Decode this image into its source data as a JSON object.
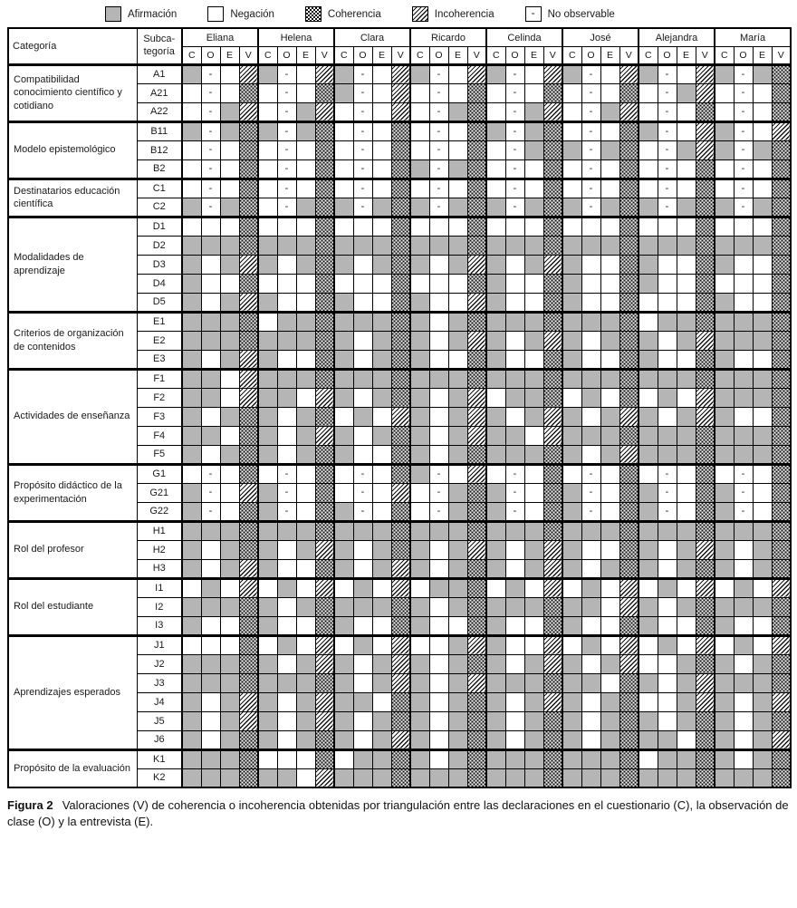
{
  "legend": {
    "items": [
      {
        "code": "A",
        "label": "Afirmación"
      },
      {
        "code": "N",
        "label": "Negación"
      },
      {
        "code": "C",
        "label": "Coherencia"
      },
      {
        "code": "I",
        "label": "Incoherencia"
      },
      {
        "code": "D",
        "label": "No observable",
        "swatch_glyph": "-"
      }
    ]
  },
  "table": {
    "category_header": "Categoría",
    "subcategory_header_lines": [
      "Subca-",
      "tegoría"
    ],
    "teachers": [
      "Eliana",
      "Helena",
      "Clara",
      "Ricardo",
      "Celinda",
      "José",
      "Alejandra",
      "María"
    ],
    "obs_columns": [
      "C",
      "O",
      "E",
      "V"
    ],
    "cell_codes": {
      "A": "afirmacion-gray",
      "N": "negacion-white",
      "C": "coherencia-dots",
      "I": "incoherencia-hatch",
      "D": "no-observable-dash"
    },
    "dash_glyph": "-",
    "blocks": [
      {
        "category": "Compatibilidad conocimiento científico y cotidiano",
        "rows": [
          {
            "sub": "A1",
            "cells": "ADNIADNIADNIADNIADNIADNIADNIADAC"
          },
          {
            "sub": "A21",
            "cells": "NDNCNDNCADNINDNCNDNCNDNCNDAINDNC"
          },
          {
            "sub": "A22",
            "cells": "NDAINDAINDNINDACNDAINDAINDNCNDNC"
          }
        ]
      },
      {
        "category": "Modelo epistemológico",
        "rows": [
          {
            "sub": "B11",
            "cells": "ADACADACNDNCNDNCADACNDNCADNIADNI"
          },
          {
            "sub": "B12",
            "cells": "NDNCNDNCNDNCNDNCNDACADACNDAIADAC"
          },
          {
            "sub": "B2",
            "cells": "NDNCNDNCNDNCADACNDNCNDNCNDNCNDNC"
          }
        ]
      },
      {
        "category": "Destinatarios educación científica",
        "rows": [
          {
            "sub": "C1",
            "cells": "NDNCNDNCNDNCNDNCNDNCNDNCNDNCNDNC"
          },
          {
            "sub": "C2",
            "cells": "ADACNDACADACADACADACADACADACADAC"
          }
        ]
      },
      {
        "category": "Modalidades de aprendizaje",
        "rows": [
          {
            "sub": "D1",
            "cells": "NNNCNNNCNNNCNNNCNNNCNNNCNNNCNNNC"
          },
          {
            "sub": "D2",
            "cells": "AAACAAACAAACAAACAAACAAACAAACAAAC"
          },
          {
            "sub": "D3",
            "cells": "ANAIANACANACANAIANAIANNCANNCANNC"
          },
          {
            "sub": "D4",
            "cells": "ANNCNNNCNNNCNNNCANNCANNCANNCNNNC"
          },
          {
            "sub": "D5",
            "cells": "ANAIANNCANNCANNIANNCANNCNNNCANNC"
          }
        ]
      },
      {
        "category": "Criterios de organización de contenidos",
        "rows": [
          {
            "sub": "E1",
            "cells": "AAACNAACAAACANACAAACAAACNAACAAAC"
          },
          {
            "sub": "E2",
            "cells": "AAACAAACANACANAIANAIANACANAIAAAC"
          },
          {
            "sub": "E3",
            "cells": "ANAIANNCANACANNCANNCANNCANNCANNC"
          }
        ]
      },
      {
        "category": "Actividades de enseñanza",
        "rows": [
          {
            "sub": "F1",
            "cells": "AANIAAACAAACAAACAAACAAACAAACAAAC"
          },
          {
            "sub": "F2",
            "cells": "AANIAANIANACANAINAACNANCNANIAAAC"
          },
          {
            "sub": "F3",
            "cells": "ANACANACNANIANAIANAIANAIANAIANNC"
          },
          {
            "sub": "F4",
            "cells": "AANCANAIANACANAIAANIAAACAAACAAAC"
          },
          {
            "sub": "F5",
            "cells": "ANACANACANNCANACAAACANAIAAACAAAC"
          }
        ]
      },
      {
        "category": "Propósito didáctico de la experimentación",
        "rows": [
          {
            "sub": "G1",
            "cells": "NDNCNDNCNDNCADNINDNCNDNCNDNCNDNC"
          },
          {
            "sub": "G21",
            "cells": "ADNIADNCNDNINDACADNCADNCADNCADNC"
          },
          {
            "sub": "G22",
            "cells": "ADNCADNCADNCNDACADNCADNCADNCADNC"
          }
        ]
      },
      {
        "category": "Rol del profesor",
        "rows": [
          {
            "sub": "H1",
            "cells": "AAACAAACAAACAAACAAACAAACAAACAAAC"
          },
          {
            "sub": "H2",
            "cells": "ANACANAIANACANAIANAIANNCANAIANAC"
          },
          {
            "sub": "H3",
            "cells": "ANAIANNCANAIANACANAIANACANACANAC"
          }
        ]
      },
      {
        "category": "Rol del estudiante",
        "rows": [
          {
            "sub": "I1",
            "cells": "NANINANINANINAACNANINANINANINANI"
          },
          {
            "sub": "I2",
            "cells": "AAACANACAAACANACAAACAANIANACAAAC"
          },
          {
            "sub": "I3",
            "cells": "ANNCANNCANNCANNCANNCANNCANNCANNC"
          }
        ]
      },
      {
        "category": "Aprendizajes esperados",
        "rows": [
          {
            "sub": "J1",
            "cells": "NNNCNANINANINNAIANNINANINANINANI"
          },
          {
            "sub": "J2",
            "cells": "AAACANAIANAIANACANAIANAINNACANAC"
          },
          {
            "sub": "J3",
            "cells": "AAACAAACANAIANAIAAACAANCANAIAAAC"
          },
          {
            "sub": "J4",
            "cells": "ANAIANAIAANCANACANAIANACNNAIANAI"
          },
          {
            "sub": "J5",
            "cells": "ANAIANAIANACANACANACANACANACANAC"
          },
          {
            "sub": "J6",
            "cells": "ANACANACANAIANACANACANACAANCANAI"
          }
        ]
      },
      {
        "category": "Propósito de la evaluación",
        "rows": [
          {
            "sub": "K1",
            "cells": "AAACNNNCNAACANACAAACAAACNAACANAC"
          },
          {
            "sub": "K2",
            "cells": "AAACAANIAAACAAACAAACAAACAAACAAAC"
          }
        ]
      }
    ]
  },
  "caption": {
    "label": "Figura 2",
    "text": "Valoraciones (V) de coherencia o incoherencia obtenidas por triangulación entre las declaraciones en el cuestionario (C), la observación de clase (O) y la entrevista (E)."
  }
}
